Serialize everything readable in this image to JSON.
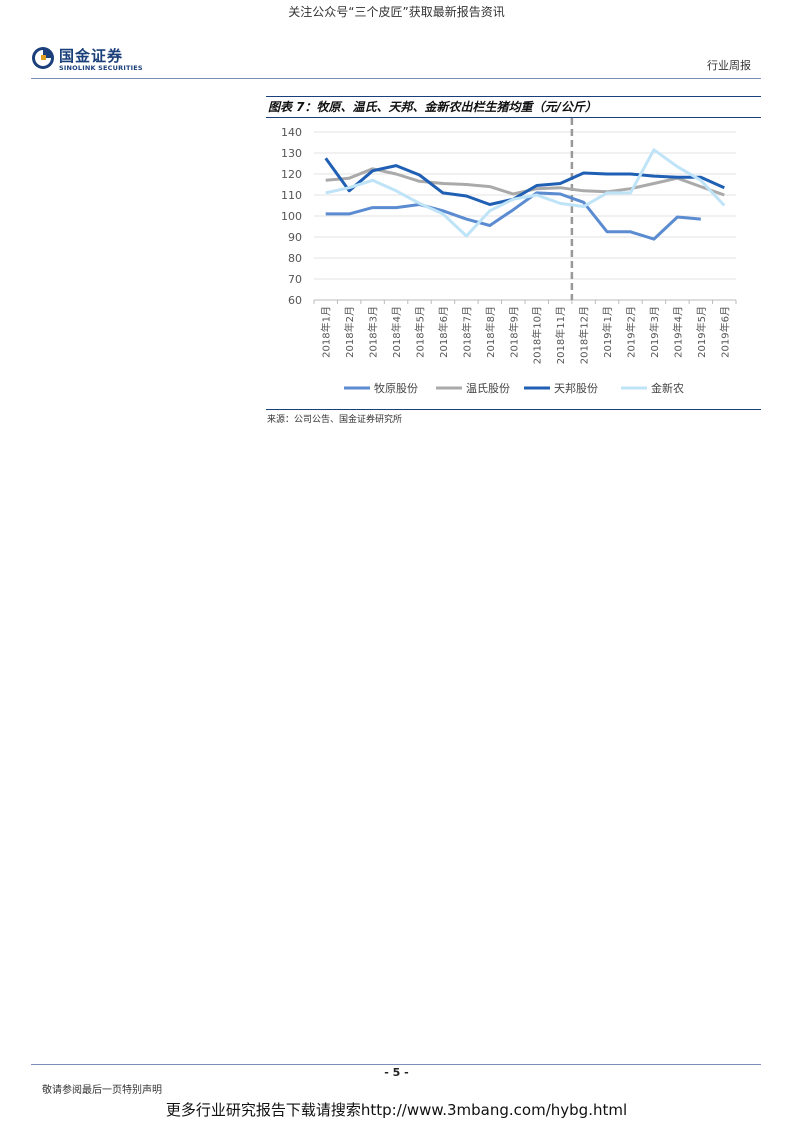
{
  "top_banner": "关注公众号“三个皮匠”获取最新报告资讯",
  "logo": {
    "cn": "国金证券",
    "en": "SINOLINK SECURITIES"
  },
  "header_right": "行业周报",
  "figure": {
    "title": "图表 7：牧原、温氏、天邦、金新农出栏生猪均重（元/公斤）",
    "source": "来源：公司公告、国金证券研究所"
  },
  "chart_data": {
    "type": "line",
    "categories": [
      "2018年1月",
      "2018年2月",
      "2018年3月",
      "2018年4月",
      "2018年5月",
      "2018年6月",
      "2018年7月",
      "2018年8月",
      "2018年9月",
      "2018年10月",
      "2018年11月",
      "2018年12月",
      "2019年1月",
      "2019年2月",
      "2019年3月",
      "2019年4月",
      "2019年5月",
      "2019年6月"
    ],
    "ylim": [
      60,
      140
    ],
    "yticks": [
      60,
      70,
      80,
      90,
      100,
      110,
      120,
      130,
      140
    ],
    "grid": true,
    "legend_position": "bottom",
    "divider_after_category": "2018年11月",
    "series": [
      {
        "name": "牧原股份",
        "color": "#5b8bd0",
        "values": [
          101,
          101,
          104,
          104,
          105.5,
          102.5,
          98.5,
          95.5,
          103,
          111,
          110.5,
          106.5,
          92.5,
          92.5,
          89,
          99.5,
          98.5,
          null
        ]
      },
      {
        "name": "温氏股份",
        "color": "#aaaaaa",
        "values": [
          117,
          118,
          122.5,
          120,
          116.5,
          115.5,
          115,
          114,
          110.5,
          113,
          113.5,
          112,
          111.5,
          113,
          115.5,
          118,
          114,
          110
        ]
      },
      {
        "name": "天邦股份",
        "color": "#1f5fb4",
        "values": [
          127.5,
          112,
          121.5,
          124,
          119.5,
          111,
          109.5,
          105.5,
          108,
          114.5,
          115.5,
          120.5,
          120,
          120,
          119,
          118.5,
          118.5,
          113.5
        ]
      },
      {
        "name": "金新农",
        "color": "#bfe3f7",
        "values": [
          111,
          113.5,
          117,
          112,
          106,
          101,
          90.5,
          102.5,
          108,
          110,
          106,
          104.5,
          111,
          111,
          131.5,
          123.5,
          117,
          105
        ]
      }
    ]
  },
  "footer": {
    "page": "- 5 -",
    "disclaimer": "敬请参阅最后一页特别声明",
    "download": "更多行业研究报告下载请搜索http://www.3mbang.com/hybg.html"
  }
}
